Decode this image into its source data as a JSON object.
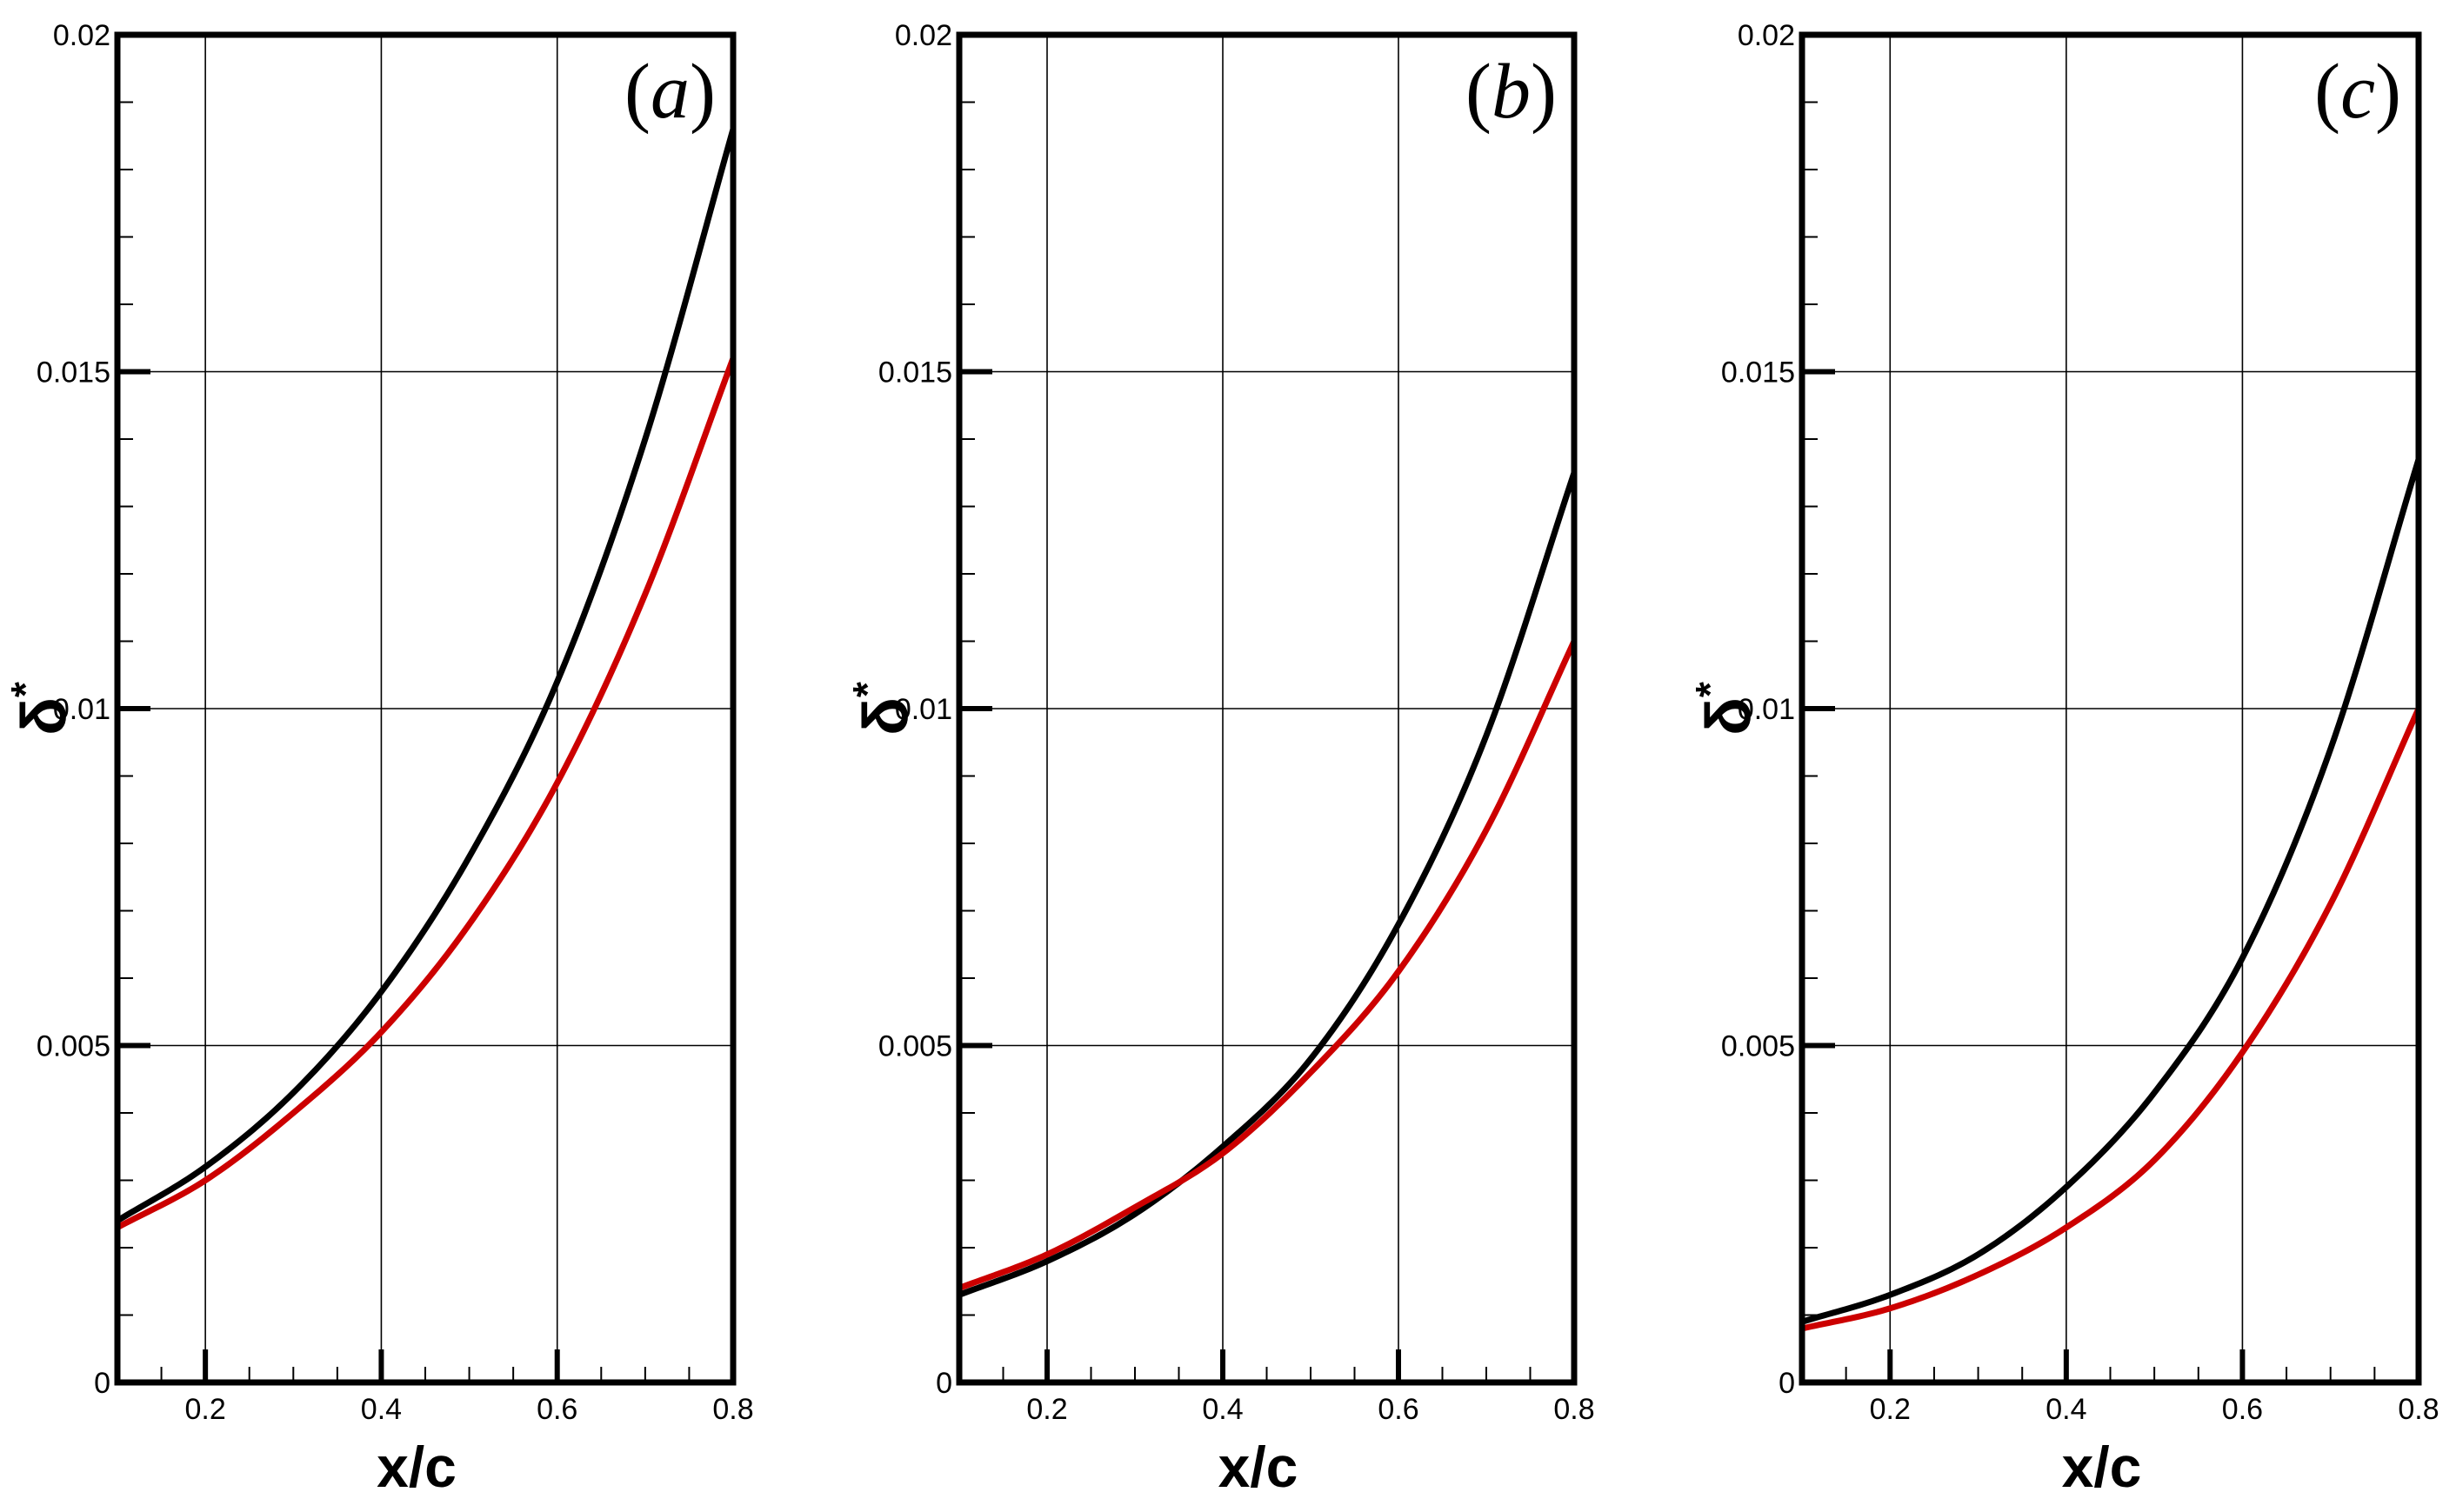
{
  "chart_data": [
    {
      "type": "line",
      "panel_label": "(a)",
      "panel_letter": "a",
      "xlabel": "x/c",
      "ylabel": "δ",
      "ylabel_sup": "*",
      "xlim": [
        0.1,
        0.8
      ],
      "ylim": [
        0,
        0.02
      ],
      "x_ticks": [
        0.2,
        0.4,
        0.6,
        0.8
      ],
      "x_tick_labels": [
        "0.2",
        "0.4",
        "0.6",
        "0.8"
      ],
      "y_ticks": [
        0,
        0.005,
        0.01,
        0.015,
        0.02
      ],
      "y_tick_labels": [
        "0",
        "0.005",
        "0.01",
        "0.015",
        "0.02"
      ],
      "grid": true,
      "x": [
        0.1,
        0.2,
        0.3,
        0.4,
        0.5,
        0.6,
        0.7,
        0.8
      ],
      "series": [
        {
          "name": "black",
          "color": "#000000",
          "values": [
            0.0024,
            0.0032,
            0.0043,
            0.0058,
            0.0078,
            0.0104,
            0.014,
            0.0186
          ]
        },
        {
          "name": "red",
          "color": "#cc0000",
          "values": [
            0.0023,
            0.003,
            0.004,
            0.0052,
            0.0068,
            0.0089,
            0.0117,
            0.0152
          ]
        }
      ]
    },
    {
      "type": "line",
      "panel_label": "(b)",
      "panel_letter": "b",
      "xlabel": "x/c",
      "ylabel": "δ",
      "ylabel_sup": "*",
      "xlim": [
        0.1,
        0.8
      ],
      "ylim": [
        0,
        0.02
      ],
      "x_ticks": [
        0.2,
        0.4,
        0.6,
        0.8
      ],
      "x_tick_labels": [
        "0.2",
        "0.4",
        "0.6",
        "0.8"
      ],
      "y_ticks": [
        0,
        0.005,
        0.01,
        0.015,
        0.02
      ],
      "y_tick_labels": [
        "0",
        "0.005",
        "0.01",
        "0.015",
        "0.02"
      ],
      "grid": true,
      "x": [
        0.1,
        0.2,
        0.3,
        0.4,
        0.5,
        0.6,
        0.7,
        0.8
      ],
      "series": [
        {
          "name": "black",
          "color": "#000000",
          "values": [
            0.0013,
            0.0018,
            0.0025,
            0.0035,
            0.0048,
            0.0068,
            0.0096,
            0.0135
          ]
        },
        {
          "name": "red",
          "color": "#cc0000",
          "values": [
            0.0014,
            0.0019,
            0.0026,
            0.0034,
            0.0046,
            0.0061,
            0.0082,
            0.011
          ]
        }
      ]
    },
    {
      "type": "line",
      "panel_label": "(c)",
      "panel_letter": "c",
      "xlabel": "x/c",
      "ylabel": "δ",
      "ylabel_sup": "*",
      "xlim": [
        0.1,
        0.8
      ],
      "ylim": [
        0,
        0.02
      ],
      "x_ticks": [
        0.2,
        0.4,
        0.6,
        0.8
      ],
      "x_tick_labels": [
        "0.2",
        "0.4",
        "0.6",
        "0.8"
      ],
      "y_ticks": [
        0,
        0.005,
        0.01,
        0.015,
        0.02
      ],
      "y_tick_labels": [
        "0",
        "0.005",
        "0.01",
        "0.015",
        "0.02"
      ],
      "grid": true,
      "x": [
        0.1,
        0.2,
        0.3,
        0.4,
        0.5,
        0.6,
        0.7,
        0.8
      ],
      "series": [
        {
          "name": "black",
          "color": "#000000",
          "values": [
            0.0009,
            0.0013,
            0.0019,
            0.0029,
            0.0043,
            0.0063,
            0.0094,
            0.0137
          ]
        },
        {
          "name": "red",
          "color": "#cc0000",
          "values": [
            0.0008,
            0.0011,
            0.0016,
            0.0023,
            0.0033,
            0.0049,
            0.0071,
            0.01
          ]
        }
      ]
    }
  ]
}
